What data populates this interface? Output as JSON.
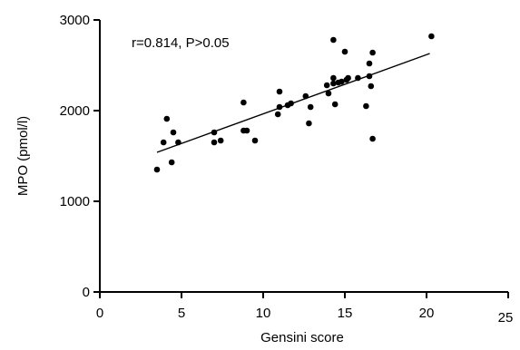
{
  "chart_data": {
    "type": "scatter",
    "xlabel": "Gensini score",
    "ylabel": "MPO (pmol/l)",
    "xlim": [
      0,
      25
    ],
    "ylim": [
      0,
      3000
    ],
    "x_ticks": [
      0,
      5,
      10,
      15,
      20,
      25
    ],
    "y_ticks": [
      0,
      1000,
      2000,
      3000
    ],
    "annotation": "r=0.814, P>0.05",
    "grid": false,
    "trendline": {
      "x": [
        3.5,
        20.2
      ],
      "y": [
        1540,
        2630
      ]
    },
    "points": [
      {
        "x": 3.5,
        "y": 1350
      },
      {
        "x": 3.9,
        "y": 1650
      },
      {
        "x": 4.1,
        "y": 1910
      },
      {
        "x": 4.4,
        "y": 1430
      },
      {
        "x": 4.5,
        "y": 1760
      },
      {
        "x": 4.8,
        "y": 1650
      },
      {
        "x": 7.0,
        "y": 1760
      },
      {
        "x": 7.0,
        "y": 1650
      },
      {
        "x": 7.4,
        "y": 1670
      },
      {
        "x": 8.8,
        "y": 2090
      },
      {
        "x": 8.8,
        "y": 1780
      },
      {
        "x": 9.0,
        "y": 1780
      },
      {
        "x": 9.5,
        "y": 1670
      },
      {
        "x": 10.9,
        "y": 1960
      },
      {
        "x": 11.0,
        "y": 2210
      },
      {
        "x": 11.0,
        "y": 2040
      },
      {
        "x": 11.5,
        "y": 2060
      },
      {
        "x": 11.7,
        "y": 2080
      },
      {
        "x": 12.6,
        "y": 2160
      },
      {
        "x": 12.8,
        "y": 1860
      },
      {
        "x": 12.9,
        "y": 2040
      },
      {
        "x": 13.9,
        "y": 2280
      },
      {
        "x": 14.0,
        "y": 2190
      },
      {
        "x": 14.3,
        "y": 2780
      },
      {
        "x": 14.3,
        "y": 2360
      },
      {
        "x": 14.3,
        "y": 2300
      },
      {
        "x": 14.4,
        "y": 2070
      },
      {
        "x": 14.6,
        "y": 2310
      },
      {
        "x": 14.8,
        "y": 2320
      },
      {
        "x": 15.0,
        "y": 2650
      },
      {
        "x": 15.1,
        "y": 2340
      },
      {
        "x": 15.2,
        "y": 2360
      },
      {
        "x": 15.8,
        "y": 2360
      },
      {
        "x": 16.3,
        "y": 2050
      },
      {
        "x": 16.5,
        "y": 2380
      },
      {
        "x": 16.5,
        "y": 2520
      },
      {
        "x": 16.6,
        "y": 2270
      },
      {
        "x": 16.7,
        "y": 2640
      },
      {
        "x": 16.7,
        "y": 1690
      },
      {
        "x": 20.3,
        "y": 2820
      }
    ]
  }
}
